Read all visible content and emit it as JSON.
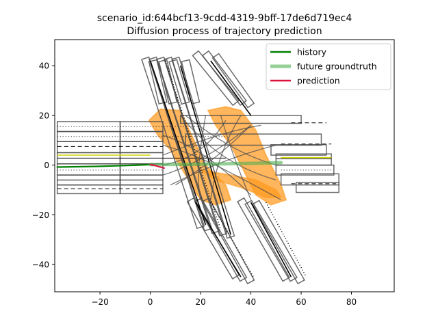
{
  "chart_data": {
    "type": "line",
    "title_line1": "scenario_id:644bcf13-9cdd-4319-9bff-17de6d719ec4",
    "title_line2": "Diffusion process of trajectory prediction",
    "xlabel": "",
    "ylabel": "",
    "xlim": [
      -38,
      97
    ],
    "ylim": [
      -51,
      50.5
    ],
    "xticks": [
      -20,
      0,
      20,
      40,
      60,
      80
    ],
    "yticks": [
      -40,
      -20,
      0,
      20,
      40
    ],
    "grid": false,
    "legend_position": "top-right",
    "series": [
      {
        "name": "history",
        "color": "#008000",
        "points": [
          [
            -37,
            -0.8
          ],
          [
            -20,
            -0.5
          ],
          [
            -5,
            0
          ],
          [
            0,
            0.2
          ]
        ]
      },
      {
        "name": "future groundtruth",
        "color": "#4caf50",
        "points": [
          [
            0,
            0.2
          ],
          [
            15,
            0.3
          ],
          [
            30,
            0.5
          ],
          [
            45,
            0.8
          ],
          [
            52,
            1.0
          ]
        ]
      },
      {
        "name": "prediction",
        "color": "#dc143c",
        "points": [
          [
            0,
            0.2
          ],
          [
            2,
            -0.2
          ],
          [
            4,
            -0.8
          ],
          [
            5.5,
            -1.2
          ]
        ]
      }
    ],
    "map_color": "#4d4d4d",
    "diffusion_color": "#ff9a1f",
    "lane_highlight_color": "#d4d400"
  }
}
